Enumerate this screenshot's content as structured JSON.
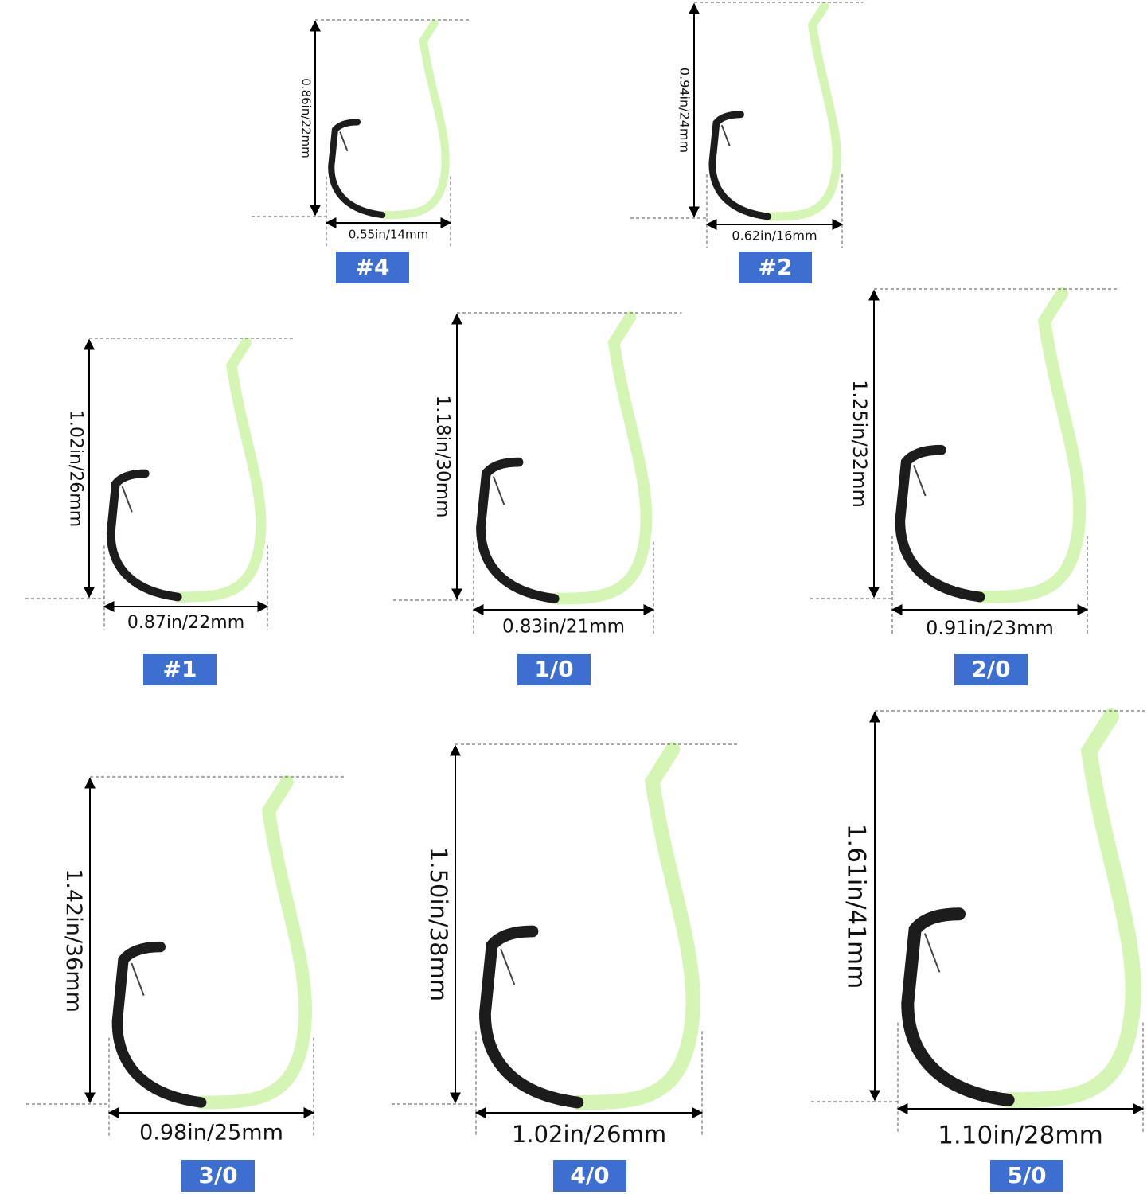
{
  "hooks": [
    {
      "size": "#4",
      "height": "0.86in/22mm",
      "width": "0.55in/14mm"
    },
    {
      "size": "#2",
      "height": "0.94in/24mm",
      "width": "0.62in/16mm"
    },
    {
      "size": "#1",
      "height": "1.02in/26mm",
      "width": "0.87in/22mm"
    },
    {
      "size": "1/0",
      "height": "1.18in/30mm",
      "width": "0.83in/21mm"
    },
    {
      "size": "2/0",
      "height": "1.25in/32mm",
      "width": "0.91in/23mm"
    },
    {
      "size": "3/0",
      "height": "1.42in/36mm",
      "width": "0.98in/25mm"
    },
    {
      "size": "4/0",
      "height": "1.50in/38mm",
      "width": "1.02in/26mm"
    },
    {
      "size": "5/0",
      "height": "1.61in/41mm",
      "width": "1.10in/28mm"
    }
  ]
}
